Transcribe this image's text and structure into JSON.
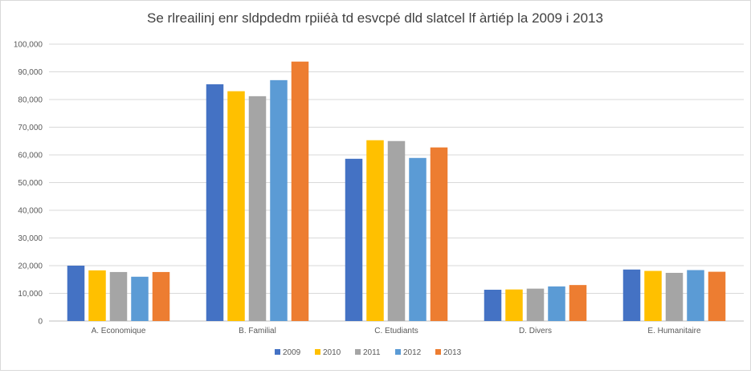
{
  "chart_data": {
    "type": "bar",
    "title": "Se rlreailinj enr sldpdedm rpiiéà td esvcpé dld slatcel lf àrtiép la 2009 i 2013",
    "xlabel": "",
    "ylabel": "",
    "ylim": [
      0,
      100000
    ],
    "yticks": [
      "0",
      "10,000",
      "20,000",
      "30,000",
      "40,000",
      "50,000",
      "60,000",
      "70,000",
      "80,000",
      "90,000",
      "100,000"
    ],
    "ytick_values": [
      0,
      10000,
      20000,
      30000,
      40000,
      50000,
      60000,
      70000,
      80000,
      90000,
      100000
    ],
    "grid": true,
    "legend_position": "bottom",
    "categories": [
      "A. Economique",
      "B. Familial",
      "C. Etudiants",
      "D. Divers",
      "E. Humanitaire"
    ],
    "series": [
      {
        "name": "2009",
        "color": "#4472c4",
        "values": [
          20000,
          85500,
          58600,
          11300,
          18600
        ]
      },
      {
        "name": "2010",
        "color": "#ffc000",
        "values": [
          18300,
          83000,
          65300,
          11400,
          18100
        ]
      },
      {
        "name": "2011",
        "color": "#a5a5a5",
        "values": [
          17700,
          81200,
          65000,
          11700,
          17400
        ]
      },
      {
        "name": "2012",
        "color": "#5b9bd5",
        "values": [
          16000,
          87000,
          58900,
          12500,
          18400
        ]
      },
      {
        "name": "2013",
        "color": "#ed7d31",
        "values": [
          17700,
          93700,
          62700,
          13000,
          17800
        ]
      }
    ]
  }
}
